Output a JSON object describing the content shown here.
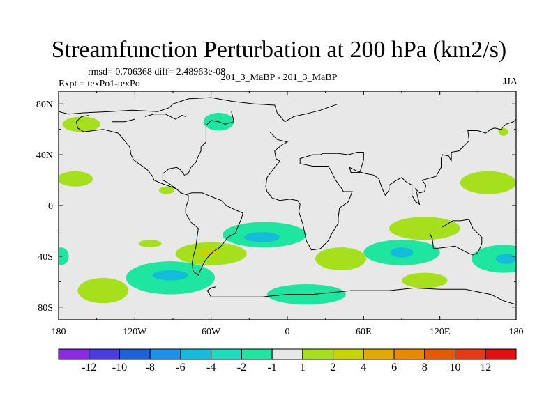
{
  "chart_data": {
    "type": "heatmap",
    "title": "Streamfunction Perturbation at 200 hPa (km2/s)",
    "stats_text": "rmsd= 0.706368 diff= 2.48963e-08",
    "expt_text": "Expt = texPo1-texPo",
    "run_text": "201_3_MaBP - 201_3_MaBP",
    "season_text": "JJA",
    "xlim": [
      -180,
      180
    ],
    "ylim": [
      -90,
      90
    ],
    "x_ticks": [
      {
        "value": -180,
        "label": "180"
      },
      {
        "value": -120,
        "label": "120W"
      },
      {
        "value": -60,
        "label": "60W"
      },
      {
        "value": 0,
        "label": "0"
      },
      {
        "value": 60,
        "label": "60E"
      },
      {
        "value": 120,
        "label": "120E"
      },
      {
        "value": 180,
        "label": "180"
      }
    ],
    "y_ticks": [
      {
        "value": 80,
        "label": "80N"
      },
      {
        "value": 40,
        "label": "40N"
      },
      {
        "value": 0,
        "label": "0"
      },
      {
        "value": -40,
        "label": "40S"
      },
      {
        "value": -80,
        "label": "80S"
      }
    ],
    "colorbar": {
      "levels": [
        -12,
        -10,
        -8,
        -6,
        -4,
        -2,
        -1,
        1,
        2,
        4,
        6,
        8,
        10,
        12
      ],
      "colors": [
        "#8a2be2",
        "#4b3ce0",
        "#1e62d8",
        "#1e90e6",
        "#13bdd9",
        "#1fdcbf",
        "#1ee6a0",
        "#e8e8e8",
        "#a6e01c",
        "#c8d400",
        "#e0aa00",
        "#e88a00",
        "#e55a00",
        "#e63a14",
        "#e21010"
      ]
    },
    "features": [
      {
        "name": "pos-a",
        "lon": 170,
        "lat": 58,
        "rx": 4,
        "ry": 3,
        "color": "#a6e01c"
      },
      {
        "name": "pos-b",
        "lon": -162,
        "lat": 64,
        "rx": 15,
        "ry": 6,
        "color": "#a6e01c"
      },
      {
        "name": "neg-a",
        "lon": -54,
        "lat": 66,
        "rx": 12,
        "ry": 7,
        "color": "#1ee6a0"
      },
      {
        "name": "pos-c",
        "lon": -167,
        "lat": 21,
        "rx": 14,
        "ry": 6,
        "color": "#a6e01c"
      },
      {
        "name": "pos-d",
        "lon": 158,
        "lat": 18,
        "rx": 22,
        "ry": 9,
        "color": "#a6e01c"
      },
      {
        "name": "pos-e",
        "lon": -95,
        "lat": 12,
        "rx": 6,
        "ry": 3,
        "color": "#a6e01c"
      },
      {
        "name": "pos-f",
        "lon": 108,
        "lat": -18,
        "rx": 28,
        "ry": 9,
        "color": "#a6e01c"
      },
      {
        "name": "neg-b",
        "lon": -18,
        "lat": -23,
        "rx": 33,
        "ry": 10,
        "color": "#1ee6a0"
      },
      {
        "name": "neg-b-core",
        "lon": -20,
        "lat": -25,
        "rx": 14,
        "ry": 4,
        "color": "#13bdd9"
      },
      {
        "name": "pos-g",
        "lon": -108,
        "lat": -30,
        "rx": 9,
        "ry": 3,
        "color": "#a6e01c"
      },
      {
        "name": "pos-h",
        "lon": -60,
        "lat": -38,
        "rx": 28,
        "ry": 9,
        "color": "#a6e01c"
      },
      {
        "name": "pos-h-core",
        "lon": -62,
        "lat": -37,
        "rx": 8,
        "ry": 3,
        "color": "#c8d400"
      },
      {
        "name": "neg-c",
        "lon": -178,
        "lat": -40,
        "rx": 6,
        "ry": 7,
        "color": "#1ee6a0"
      },
      {
        "name": "neg-d",
        "lon": 90,
        "lat": -37,
        "rx": 30,
        "ry": 10,
        "color": "#1ee6a0"
      },
      {
        "name": "neg-d-core",
        "lon": 90,
        "lat": -37,
        "rx": 9,
        "ry": 4,
        "color": "#13bdd9"
      },
      {
        "name": "pos-i",
        "lon": 42,
        "lat": -42,
        "rx": 20,
        "ry": 9,
        "color": "#a6e01c"
      },
      {
        "name": "neg-e",
        "lon": 170,
        "lat": -42,
        "rx": 25,
        "ry": 11,
        "color": "#1ee6a0"
      },
      {
        "name": "neg-e-core",
        "lon": 172,
        "lat": -42,
        "rx": 8,
        "ry": 4,
        "color": "#13bdd9"
      },
      {
        "name": "neg-f",
        "lon": -92,
        "lat": -57,
        "rx": 35,
        "ry": 13,
        "color": "#1ee6a0"
      },
      {
        "name": "neg-f-core",
        "lon": -92,
        "lat": -55,
        "rx": 14,
        "ry": 4,
        "color": "#13bdd9"
      },
      {
        "name": "pos-j",
        "lon": -145,
        "lat": -67,
        "rx": 20,
        "ry": 10,
        "color": "#a6e01c"
      },
      {
        "name": "neg-g",
        "lon": 15,
        "lat": -70,
        "rx": 31,
        "ry": 8,
        "color": "#1ee6a0"
      },
      {
        "name": "pos-k",
        "lon": 108,
        "lat": -59,
        "rx": 18,
        "ry": 6,
        "color": "#a6e01c"
      }
    ],
    "coastlines": [
      [
        [
          -180,
          74
        ],
        [
          -172,
          72
        ],
        [
          -160,
          73
        ],
        [
          -140,
          74
        ],
        [
          -122,
          75
        ],
        [
          -102,
          74
        ],
        [
          -93,
          77
        ],
        [
          -90,
          80
        ],
        [
          -78,
          84
        ],
        [
          -60,
          85
        ],
        [
          -43,
          82
        ],
        [
          -26,
          80
        ],
        [
          -10,
          79
        ],
        [
          -8,
          73
        ],
        [
          -2,
          66
        ],
        [
          5,
          70
        ],
        [
          14,
          72
        ],
        [
          26,
          75
        ],
        [
          40,
          80
        ]
      ],
      [
        [
          -44,
          74
        ],
        [
          -42,
          66
        ],
        [
          -49,
          64
        ],
        [
          -54,
          66
        ],
        [
          -60,
          67
        ],
        [
          -64,
          63
        ],
        [
          -64,
          58
        ],
        [
          -64,
          54
        ],
        [
          -64,
          50
        ],
        [
          -68,
          46
        ],
        [
          -68,
          43
        ],
        [
          -70,
          39
        ],
        [
          -72,
          34
        ],
        [
          -76,
          30
        ],
        [
          -78,
          25
        ],
        [
          -81,
          24
        ],
        [
          -84,
          28
        ],
        [
          -87,
          30
        ],
        [
          -93,
          29
        ],
        [
          -98,
          25
        ],
        [
          -98,
          20
        ],
        [
          -94,
          18
        ],
        [
          -90,
          15
        ],
        [
          -86,
          12
        ],
        [
          -82,
          9
        ],
        [
          -79,
          9
        ],
        [
          -75,
          10
        ],
        [
          -67,
          10
        ],
        [
          -60,
          7
        ],
        [
          -52,
          4
        ],
        [
          -48,
          0
        ],
        [
          -42,
          -3
        ],
        [
          -35,
          -6
        ],
        [
          -36,
          -10
        ],
        [
          -39,
          -17
        ],
        [
          -41,
          -22
        ],
        [
          -47,
          -25
        ],
        [
          -49,
          -28
        ],
        [
          -53,
          -33
        ],
        [
          -58,
          -36
        ],
        [
          -62,
          -40
        ],
        [
          -65,
          -44
        ],
        [
          -68,
          -50
        ],
        [
          -70,
          -55
        ],
        [
          -74,
          -52
        ],
        [
          -75,
          -46
        ],
        [
          -74,
          -40
        ],
        [
          -72,
          -33
        ],
        [
          -71,
          -25
        ],
        [
          -70,
          -18
        ],
        [
          -76,
          -13
        ],
        [
          -80,
          -6
        ],
        [
          -80,
          -2
        ],
        [
          -78,
          4
        ],
        [
          -78,
          8
        ],
        [
          -84,
          10
        ],
        [
          -87,
          13
        ],
        [
          -92,
          15
        ],
        [
          -98,
          17
        ],
        [
          -105,
          20
        ],
        [
          -106,
          23
        ],
        [
          -110,
          28
        ],
        [
          -114,
          31
        ],
        [
          -117,
          33
        ],
        [
          -121,
          36
        ],
        [
          -123,
          40
        ],
        [
          -124,
          46
        ],
        [
          -128,
          51
        ],
        [
          -133,
          57
        ],
        [
          -145,
          60
        ],
        [
          -160,
          58
        ],
        [
          -165,
          61
        ],
        [
          -166,
          66
        ],
        [
          -162,
          70
        ],
        [
          -156,
          71
        ]
      ],
      [
        [
          -14,
          58
        ],
        [
          -8,
          52
        ],
        [
          0,
          50
        ],
        [
          -4,
          48
        ],
        [
          -10,
          43
        ],
        [
          -9,
          37
        ],
        [
          -6,
          35
        ],
        [
          -10,
          30
        ],
        [
          -16,
          22
        ],
        [
          -17,
          15
        ],
        [
          -16,
          11
        ],
        [
          -12,
          6
        ],
        [
          -6,
          4
        ],
        [
          2,
          5
        ],
        [
          8,
          4
        ],
        [
          10,
          1
        ],
        [
          9,
          -5
        ],
        [
          12,
          -14
        ],
        [
          15,
          -28
        ],
        [
          19,
          -35
        ],
        [
          26,
          -34
        ],
        [
          32,
          -28
        ],
        [
          35,
          -22
        ],
        [
          40,
          -14
        ],
        [
          40,
          -10
        ],
        [
          41,
          -2
        ],
        [
          48,
          3
        ],
        [
          51,
          11
        ],
        [
          44,
          11
        ],
        [
          43,
          13
        ],
        [
          38,
          20
        ],
        [
          34,
          28
        ],
        [
          32,
          31
        ],
        [
          26,
          31
        ],
        [
          20,
          31
        ],
        [
          10,
          33
        ],
        [
          10,
          37
        ],
        [
          20,
          40
        ],
        [
          26,
          40
        ],
        [
          28,
          41
        ],
        [
          40,
          41
        ],
        [
          48,
          40
        ],
        [
          55,
          42
        ],
        [
          60,
          42
        ],
        [
          60,
          36
        ],
        [
          57,
          26
        ],
        [
          50,
          26
        ],
        [
          49,
          30
        ],
        [
          55,
          27
        ],
        [
          62,
          25
        ],
        [
          68,
          24
        ],
        [
          72,
          21
        ],
        [
          74,
          15
        ],
        [
          77,
          8
        ],
        [
          80,
          12
        ],
        [
          80,
          16
        ],
        [
          86,
          20
        ],
        [
          90,
          22
        ],
        [
          93,
          19
        ],
        [
          98,
          16
        ],
        [
          98,
          8
        ],
        [
          101,
          3
        ],
        [
          104,
          1
        ],
        [
          103,
          5
        ],
        [
          101,
          13
        ],
        [
          104,
          10
        ],
        [
          108,
          11
        ],
        [
          109,
          16
        ],
        [
          106,
          20
        ],
        [
          110,
          21
        ],
        [
          117,
          23
        ],
        [
          121,
          30
        ],
        [
          121,
          37
        ],
        [
          122,
          40
        ],
        [
          127,
          39
        ],
        [
          129,
          35
        ],
        [
          129,
          42
        ],
        [
          135,
          43
        ],
        [
          140,
          48
        ],
        [
          143,
          51
        ],
        [
          142,
          59
        ],
        [
          150,
          59
        ],
        [
          156,
          57
        ],
        [
          160,
          60
        ],
        [
          163,
          61
        ],
        [
          168,
          60
        ],
        [
          172,
          64
        ],
        [
          178,
          66
        ],
        [
          180,
          68
        ]
      ],
      [
        [
          112,
          -22
        ],
        [
          114,
          -26
        ],
        [
          115,
          -34
        ],
        [
          124,
          -33
        ],
        [
          132,
          -32
        ],
        [
          139,
          -36
        ],
        [
          146,
          -39
        ],
        [
          150,
          -37
        ],
        [
          153,
          -30
        ],
        [
          153,
          -25
        ],
        [
          146,
          -18
        ],
        [
          143,
          -11
        ],
        [
          136,
          -12
        ],
        [
          130,
          -12
        ],
        [
          122,
          -17
        ]
      ],
      [
        [
          -56,
          -64
        ],
        [
          -60,
          -65
        ],
        [
          -63,
          -67
        ],
        [
          -60,
          -72
        ],
        [
          -40,
          -72
        ],
        [
          -20,
          -72
        ],
        [
          0,
          -70
        ],
        [
          20,
          -70
        ],
        [
          50,
          -67
        ],
        [
          80,
          -67
        ],
        [
          100,
          -65
        ],
        [
          120,
          -66
        ],
        [
          140,
          -66
        ],
        [
          160,
          -70
        ],
        [
          170,
          -75
        ],
        [
          180,
          -78
        ]
      ],
      [
        [
          -112,
          70
        ],
        [
          -105,
          72
        ],
        [
          -96,
          72
        ],
        [
          -88,
          68
        ],
        [
          -83,
          71
        ],
        [
          -80,
          70
        ]
      ],
      [
        [
          -138,
          66
        ],
        [
          -128,
          66
        ],
        [
          -120,
          68
        ]
      ]
    ]
  }
}
